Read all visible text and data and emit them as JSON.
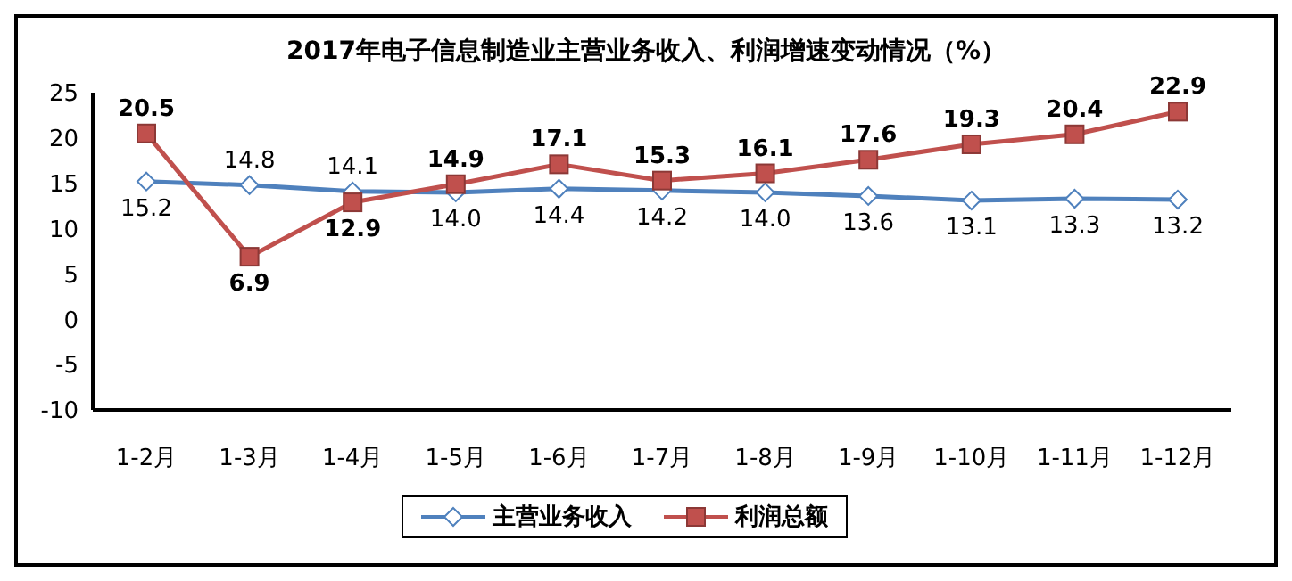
{
  "chart_data": {
    "type": "line",
    "title": "2017年电子信息制造业主营业务收入、利润增速变动情况（%）",
    "categories": [
      "1-2月",
      "1-3月",
      "1-4月",
      "1-5月",
      "1-6月",
      "1-7月",
      "1-8月",
      "1-9月",
      "1-10月",
      "1-11月",
      "1-12月"
    ],
    "series": [
      {
        "name": "主营业务收入",
        "color": "#4f81bd",
        "marker": "diamond",
        "values": [
          15.2,
          14.8,
          14.1,
          14.0,
          14.4,
          14.2,
          14.0,
          13.6,
          13.1,
          13.3,
          13.2
        ],
        "value_labels": [
          "15.2",
          "14.8",
          "14.1",
          "14.0",
          "14.4",
          "14.2",
          "14.0",
          "13.6",
          "13.1",
          "13.3",
          "13.2"
        ]
      },
      {
        "name": "利润总额",
        "color": "#c0504d",
        "marker": "square",
        "values": [
          20.5,
          6.9,
          12.9,
          14.9,
          17.1,
          15.3,
          16.1,
          17.6,
          19.3,
          20.4,
          22.9
        ],
        "value_labels": [
          "20.5",
          "6.9",
          "12.9",
          "14.9",
          "17.1",
          "15.3",
          "16.1",
          "17.6",
          "19.3",
          "20.4",
          "22.9"
        ]
      }
    ],
    "ylim": [
      -10,
      25
    ],
    "yticks": [
      -10,
      -5,
      0,
      5,
      10,
      15,
      20,
      25
    ],
    "grid": false,
    "legend": "bottom"
  }
}
